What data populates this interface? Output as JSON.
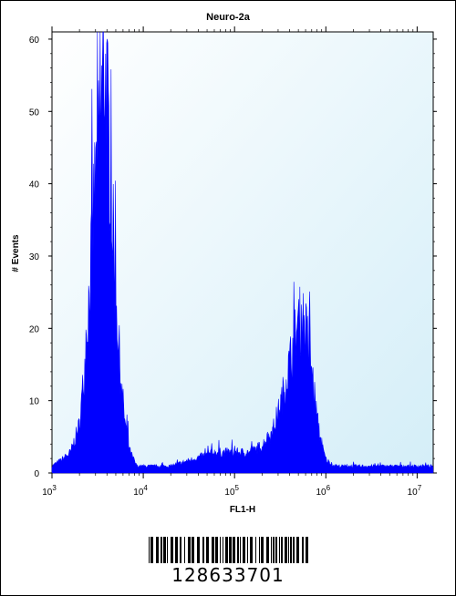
{
  "chart_data": {
    "type": "histogram",
    "title": "Neuro-2a",
    "xlabel": "FL1-H",
    "ylabel": "# Events",
    "xscale": "log",
    "xlim": [
      1000,
      15000000
    ],
    "ylim": [
      0,
      61
    ],
    "yticks": [
      0,
      10,
      20,
      30,
      40,
      50,
      60
    ],
    "xticks": [
      {
        "value": 1000,
        "base": "10",
        "exp": "3"
      },
      {
        "value": 10000,
        "base": "10",
        "exp": "4"
      },
      {
        "value": 100000,
        "base": "10",
        "exp": "5"
      },
      {
        "value": 1000000,
        "base": "10",
        "exp": "6"
      },
      {
        "value": 10000000,
        "base": "10",
        "exp": "7"
      }
    ],
    "grid": false,
    "series": [
      {
        "color": "#0000ff",
        "peaks": [
          {
            "x": 3700,
            "y_max": 61
          },
          {
            "x": 550000,
            "y_max": 23
          }
        ],
        "points": [
          [
            1000,
            1
          ],
          [
            1300,
            2
          ],
          [
            1600,
            3
          ],
          [
            2000,
            7
          ],
          [
            2300,
            16
          ],
          [
            2600,
            28
          ],
          [
            2900,
            40
          ],
          [
            3200,
            47
          ],
          [
            3500,
            55
          ],
          [
            3700,
            61
          ],
          [
            4000,
            54
          ],
          [
            4300,
            46
          ],
          [
            4700,
            34
          ],
          [
            5200,
            22
          ],
          [
            5800,
            12
          ],
          [
            6500,
            6
          ],
          [
            7200,
            3
          ],
          [
            8500,
            1
          ],
          [
            10000,
            1
          ],
          [
            20000,
            1
          ],
          [
            35000,
            2
          ],
          [
            60000,
            3
          ],
          [
            100000,
            3
          ],
          [
            150000,
            3
          ],
          [
            200000,
            4
          ],
          [
            260000,
            6
          ],
          [
            320000,
            10
          ],
          [
            400000,
            16
          ],
          [
            480000,
            21
          ],
          [
            550000,
            23
          ],
          [
            620000,
            20
          ],
          [
            700000,
            15
          ],
          [
            800000,
            8
          ],
          [
            900000,
            4
          ],
          [
            1000000,
            2
          ],
          [
            1200000,
            1
          ],
          [
            2000000,
            1
          ],
          [
            5000000,
            1
          ],
          [
            10000000,
            1
          ],
          [
            15000000,
            1
          ]
        ]
      }
    ]
  },
  "barcode": {
    "number": "128633701"
  },
  "colors": {
    "plot_background_top": "#ffffff",
    "plot_background_bottom": "#d4eef8",
    "histogram_fill": "#0000ff",
    "barcode": "#000000"
  }
}
